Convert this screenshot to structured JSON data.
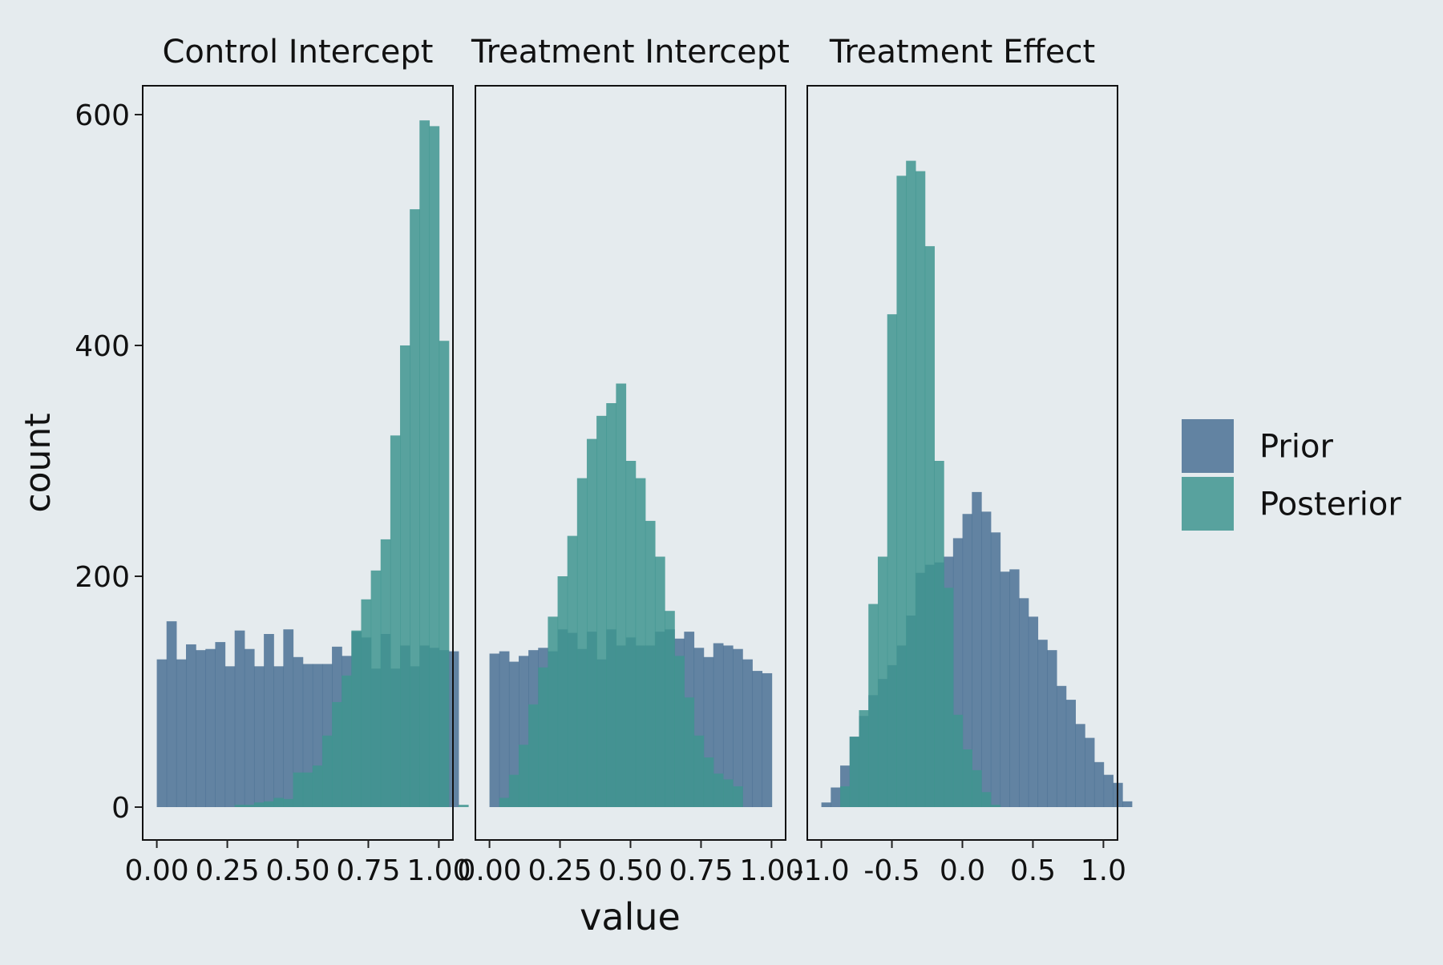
{
  "chart_data": {
    "type": "bar",
    "xlabel": "value",
    "ylabel": "count",
    "ylim": [
      0,
      600
    ],
    "y_ticks": [
      0,
      200,
      400,
      600
    ],
    "y_tick_labels": [
      "0",
      "200",
      "400",
      "600"
    ],
    "legend": {
      "placement": "right",
      "entries": [
        {
          "label": "Prior",
          "color": "#4b7194"
        },
        {
          "label": "Posterior",
          "color": "#3f958f"
        }
      ]
    },
    "colors": {
      "prior": "#4b7194",
      "posterior": "#3f958f",
      "background": "#e5ebee"
    },
    "panels": [
      {
        "title": "Control Intercept",
        "xlim": [
          -0.05,
          1.05
        ],
        "x_ticks": [
          0,
          0.25,
          0.5,
          0.75,
          1
        ],
        "x_tick_labels": [
          "0.00",
          "0.25",
          "0.50",
          "0.75",
          "1.00"
        ],
        "bin_start": 0.0,
        "bin_width": 0.0345,
        "series": [
          {
            "name": "Prior",
            "values": [
              128,
              161,
              128,
              141,
              136,
              137,
              143,
              122,
              153,
              137,
              122,
              150,
              122,
              154,
              130,
              124,
              124,
              124,
              139,
              131,
              152,
              147,
              120,
              150,
              120,
              140,
              122,
              140,
              138,
              136,
              135
            ]
          },
          {
            "name": "Posterior",
            "values": [
              0,
              0,
              0,
              0,
              0,
              0,
              0,
              0,
              2,
              2,
              4,
              5,
              8,
              7,
              30,
              30,
              36,
              62,
              91,
              114,
              153,
              180,
              205,
              232,
              322,
              400,
              518,
              595,
              590,
              404,
              0,
              2
            ]
          }
        ]
      },
      {
        "title": "Treatment Intercept",
        "xlim": [
          -0.05,
          1.05
        ],
        "x_ticks": [
          0,
          0.25,
          0.5,
          0.75,
          1
        ],
        "x_tick_labels": [
          "0.00",
          "0.25",
          "0.50",
          "0.75",
          "1.00"
        ],
        "bin_start": 0.0,
        "bin_width": 0.0345,
        "series": [
          {
            "name": "Prior",
            "values": [
              133,
              135,
              126,
              131,
              136,
              138,
              135,
              154,
              151,
              137,
              152,
              128,
              154,
              140,
              147,
              140,
              140,
              152,
              154,
              146,
              152,
              138,
              130,
              142,
              140,
              137,
              128,
              118,
              116,
              0
            ]
          },
          {
            "name": "Posterior",
            "values": [
              0,
              8,
              28,
              54,
              89,
              121,
              165,
              200,
              235,
              285,
              319,
              339,
              350,
              367,
              300,
              285,
              248,
              217,
              170,
              131,
              95,
              62,
              43,
              29,
              24,
              18,
              0,
              0,
              0,
              0
            ]
          }
        ]
      },
      {
        "title": "Treatment Effect",
        "xlim": [
          -1.1,
          1.1
        ],
        "x_ticks": [
          -1.0,
          -0.5,
          0.0,
          0.5,
          1.0
        ],
        "x_tick_labels": [
          "-1.0",
          "-0.5",
          "0.0",
          "0.5",
          "1.0"
        ],
        "bin_start": -1.0,
        "bin_width": 0.0667,
        "series": [
          {
            "name": "Prior",
            "values": [
              4,
              17,
              36,
              61,
              79,
              97,
              111,
              123,
              140,
              166,
              203,
              210,
              212,
              217,
              233,
              254,
              273,
              256,
              238,
              204,
              206,
              181,
              165,
              145,
              136,
              105,
              93,
              72,
              60,
              39,
              28,
              21,
              5
            ]
          },
          {
            "name": "Posterior",
            "values": [
              0,
              0,
              18,
              61,
              84,
              176,
              217,
              427,
              547,
              560,
              551,
              486,
              300,
              190,
              80,
              50,
              32,
              13,
              2,
              0,
              0,
              0,
              0,
              0,
              0,
              0,
              0,
              0,
              0,
              0,
              0,
              0,
              0
            ]
          }
        ]
      }
    ]
  }
}
